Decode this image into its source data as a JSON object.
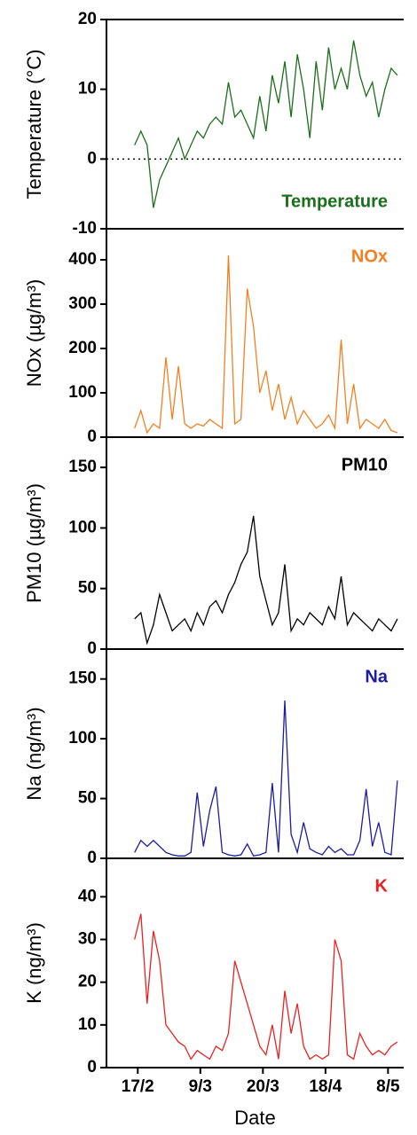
{
  "chart_data": [
    {
      "type": "line",
      "ylabel": "Temperature (°C)",
      "ylim": [
        -10,
        20
      ],
      "yticks": [
        -10,
        0,
        10,
        20
      ],
      "hline": 0,
      "legend": "lower right",
      "xlim": [
        -10,
        85
      ],
      "x": [
        -1,
        1,
        3,
        5,
        7,
        9,
        11,
        13,
        15,
        17,
        19,
        21,
        23,
        25,
        27,
        29,
        31,
        33,
        35,
        37,
        39,
        41,
        43,
        45,
        47,
        49,
        51,
        53,
        55,
        57,
        59,
        61,
        63,
        65,
        67,
        69,
        71,
        73,
        75,
        77,
        79,
        81,
        83
      ],
      "series": [
        {
          "name": "Temperature",
          "color": "#1b6e1b",
          "values": [
            2,
            4,
            2,
            -7,
            -3,
            -1,
            1,
            3,
            0,
            2,
            4,
            3,
            5,
            6,
            5,
            11,
            6,
            7,
            5,
            3,
            9,
            4,
            12,
            8,
            14,
            6,
            15,
            10,
            3,
            14,
            7,
            16,
            10,
            13,
            10,
            17,
            12,
            9,
            11,
            6,
            10,
            13,
            12
          ]
        }
      ]
    },
    {
      "type": "line",
      "ylabel": "NOx (µg/m³)",
      "ylim": [
        0,
        470
      ],
      "yticks": [
        0,
        100,
        200,
        300,
        400
      ],
      "legend": "upper right",
      "xlim": [
        -10,
        85
      ],
      "x": [
        -1,
        1,
        3,
        5,
        7,
        9,
        11,
        13,
        15,
        17,
        19,
        21,
        23,
        25,
        27,
        29,
        31,
        33,
        35,
        37,
        39,
        41,
        43,
        45,
        47,
        49,
        51,
        53,
        55,
        57,
        59,
        61,
        63,
        65,
        67,
        69,
        71,
        73,
        75,
        77,
        79,
        81,
        83
      ],
      "series": [
        {
          "name": "NOx",
          "color": "#f28022",
          "values": [
            20,
            60,
            10,
            30,
            20,
            180,
            40,
            160,
            30,
            20,
            30,
            25,
            40,
            30,
            20,
            410,
            30,
            40,
            335,
            250,
            100,
            150,
            60,
            120,
            40,
            90,
            30,
            60,
            40,
            20,
            30,
            50,
            20,
            220,
            30,
            120,
            20,
            40,
            30,
            20,
            40,
            15,
            10
          ]
        }
      ]
    },
    {
      "type": "line",
      "ylabel": "PM10 (µg/m³)",
      "ylim": [
        0,
        175
      ],
      "yticks": [
        0,
        50,
        100,
        150
      ],
      "legend": "upper right",
      "xlim": [
        -10,
        85
      ],
      "x": [
        -1,
        1,
        3,
        5,
        7,
        9,
        11,
        13,
        15,
        17,
        19,
        21,
        23,
        25,
        27,
        29,
        31,
        33,
        35,
        37,
        39,
        41,
        43,
        45,
        47,
        49,
        51,
        53,
        55,
        57,
        59,
        61,
        63,
        65,
        67,
        69,
        71,
        73,
        75,
        77,
        79,
        81,
        83
      ],
      "series": [
        {
          "name": "PM10",
          "color": "#000000",
          "values": [
            25,
            30,
            5,
            20,
            45,
            30,
            15,
            20,
            25,
            15,
            30,
            20,
            35,
            40,
            30,
            45,
            55,
            70,
            80,
            110,
            60,
            40,
            20,
            30,
            70,
            15,
            25,
            20,
            30,
            25,
            20,
            35,
            25,
            60,
            20,
            30,
            25,
            20,
            15,
            25,
            20,
            15,
            25
          ]
        }
      ]
    },
    {
      "type": "line",
      "ylabel": "Na (ng/m³)",
      "ylim": [
        0,
        175
      ],
      "yticks": [
        0,
        50,
        100,
        150
      ],
      "legend": "upper right",
      "xlim": [
        -10,
        85
      ],
      "x": [
        -1,
        1,
        3,
        5,
        7,
        9,
        11,
        13,
        15,
        17,
        19,
        21,
        23,
        25,
        27,
        29,
        31,
        33,
        35,
        37,
        39,
        41,
        43,
        45,
        47,
        49,
        51,
        53,
        55,
        57,
        59,
        61,
        63,
        65,
        67,
        69,
        71,
        73,
        75,
        77,
        79,
        81,
        83
      ],
      "series": [
        {
          "name": "Na",
          "color": "#1c1ca0",
          "values": [
            5,
            15,
            10,
            15,
            10,
            5,
            3,
            2,
            2,
            5,
            55,
            10,
            40,
            60,
            5,
            3,
            2,
            3,
            12,
            2,
            3,
            5,
            63,
            5,
            132,
            20,
            5,
            30,
            8,
            5,
            3,
            10,
            5,
            8,
            3,
            3,
            15,
            58,
            10,
            30,
            5,
            3,
            65
          ]
        }
      ]
    },
    {
      "type": "line",
      "ylabel": "K (ng/m³)",
      "ylim": [
        0,
        49
      ],
      "yticks": [
        0,
        10,
        20,
        30,
        40
      ],
      "legend": "upper right",
      "xlim": [
        -10,
        85
      ],
      "xlabel": "Date",
      "xticks": [
        {
          "value": 0,
          "label": "17/2"
        },
        {
          "value": 20,
          "label": "9/3"
        },
        {
          "value": 40,
          "label": "20/3"
        },
        {
          "value": 60,
          "label": "18/4"
        },
        {
          "value": 80,
          "label": "8/5"
        }
      ],
      "x": [
        -1,
        1,
        3,
        5,
        7,
        9,
        11,
        13,
        15,
        17,
        19,
        21,
        23,
        25,
        27,
        29,
        31,
        33,
        35,
        37,
        39,
        41,
        43,
        45,
        47,
        49,
        51,
        53,
        55,
        57,
        59,
        61,
        63,
        65,
        67,
        69,
        71,
        73,
        75,
        77,
        79,
        81,
        83
      ],
      "series": [
        {
          "name": "K",
          "color": "#e82222",
          "values": [
            30,
            36,
            15,
            32,
            25,
            10,
            8,
            6,
            5,
            2,
            4,
            3,
            2,
            5,
            4,
            8,
            25,
            20,
            15,
            10,
            5,
            3,
            10,
            2,
            18,
            8,
            15,
            5,
            2,
            3,
            2,
            3,
            30,
            25,
            3,
            2,
            8,
            5,
            3,
            4,
            3,
            5,
            6
          ]
        }
      ]
    }
  ]
}
